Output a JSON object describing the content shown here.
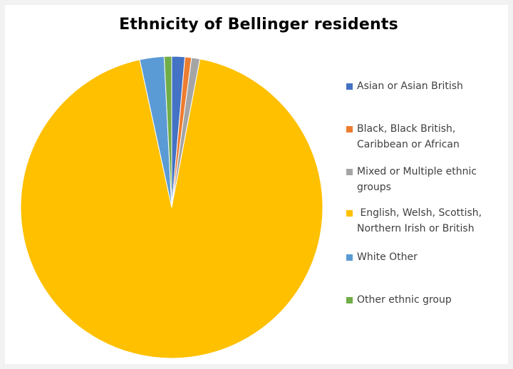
{
  "chart_data": {
    "type": "pie",
    "title": "Ethnicity of Bellinger residents",
    "categories": [
      "Asian or Asian British",
      "Black, Black British, Caribbean or African",
      "Mixed or Multiple ethnic groups",
      " English, Welsh, Scottish, Northern Irish or British",
      "White Other",
      "Other ethnic group"
    ],
    "values": [
      1.4,
      0.7,
      0.9,
      93.6,
      2.6,
      0.8
    ],
    "colors": [
      "#4472c4",
      "#ed7d31",
      "#a5a5a5",
      "#ffc000",
      "#5b9bd5",
      "#70ad47"
    ],
    "legend_position": "right",
    "legend": [
      {
        "label_lines": [
          "Asian or Asian British"
        ],
        "color": "#4472c4"
      },
      {
        "label_lines": [
          "Black, Black British,",
          "Caribbean or African"
        ],
        "color": "#ed7d31"
      },
      {
        "label_lines": [
          "Mixed or Multiple ethnic",
          "groups"
        ],
        "color": "#a5a5a5"
      },
      {
        "label_lines": [
          " English, Welsh, Scottish,",
          "Northern Irish or British"
        ],
        "color": "#ffc000"
      },
      {
        "label_lines": [
          "White Other"
        ],
        "color": "#5b9bd5"
      },
      {
        "label_lines": [
          "Other ethnic group"
        ],
        "color": "#70ad47"
      }
    ]
  }
}
